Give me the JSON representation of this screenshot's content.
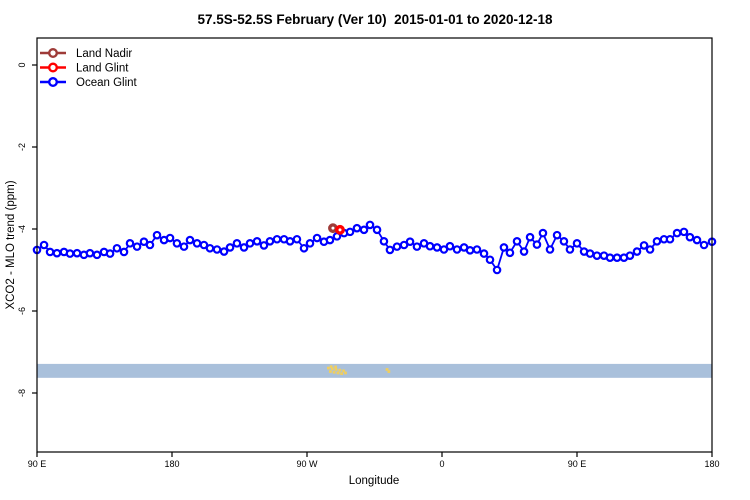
{
  "title": "57.5S-52.5S February (Ver 10)  2015-01-01 to 2020-12-18",
  "legend": {
    "items": [
      {
        "label": "Land Nadir",
        "color": "#9E3B38"
      },
      {
        "label": "Land Glint",
        "color": "#FF0000"
      },
      {
        "label": "Ocean Glint",
        "color": "#0000FF"
      }
    ]
  },
  "axes": {
    "x": {
      "label": "Longitude",
      "range_deg": [
        0,
        450
      ],
      "ticks": [
        {
          "deg": 0,
          "label": "90 E"
        },
        {
          "deg": 90,
          "label": "180"
        },
        {
          "deg": 180,
          "label": "90 W"
        },
        {
          "deg": 270,
          "label": "0"
        },
        {
          "deg": 360,
          "label": "90 E"
        },
        {
          "deg": 450,
          "label": "180"
        }
      ]
    },
    "y": {
      "label": "XCO2 - MLO trend (ppm)",
      "ticks": [
        0,
        -2,
        -4,
        -6,
        -8
      ],
      "range": [
        0.7,
        -9.5
      ]
    }
  },
  "chart_data": {
    "type": "line",
    "xlabel": "Longitude",
    "ylabel": "XCO2 - MLO trend (ppm)",
    "grid": false,
    "legend_position": "top-left",
    "series": [
      {
        "name": "Ocean Glint",
        "color": "#0000FF",
        "marker": "open-circle",
        "connected": true,
        "points": [
          [
            0,
            -4.51
          ],
          [
            4.7,
            -4.39
          ],
          [
            8.7,
            -4.56
          ],
          [
            13.3,
            -4.59
          ],
          [
            18,
            -4.56
          ],
          [
            22,
            -4.6
          ],
          [
            26.7,
            -4.59
          ],
          [
            31.3,
            -4.63
          ],
          [
            35.3,
            -4.59
          ],
          [
            40,
            -4.63
          ],
          [
            44.7,
            -4.56
          ],
          [
            48.7,
            -4.6
          ],
          [
            53.3,
            -4.47
          ],
          [
            58,
            -4.56
          ],
          [
            62,
            -4.35
          ],
          [
            66.7,
            -4.43
          ],
          [
            71.3,
            -4.31
          ],
          [
            75.3,
            -4.39
          ],
          [
            80,
            -4.15
          ],
          [
            84.7,
            -4.27
          ],
          [
            88.7,
            -4.22
          ],
          [
            93.3,
            -4.35
          ],
          [
            98,
            -4.43
          ],
          [
            102,
            -4.27
          ],
          [
            106.7,
            -4.35
          ],
          [
            111.3,
            -4.39
          ],
          [
            115.3,
            -4.47
          ],
          [
            120,
            -4.5
          ],
          [
            124.7,
            -4.55
          ],
          [
            128.7,
            -4.45
          ],
          [
            133.3,
            -4.35
          ],
          [
            138,
            -4.45
          ],
          [
            142,
            -4.35
          ],
          [
            146.7,
            -4.3
          ],
          [
            151.3,
            -4.4
          ],
          [
            155.3,
            -4.3
          ],
          [
            160,
            -4.25
          ],
          [
            164.7,
            -4.25
          ],
          [
            168.7,
            -4.3
          ],
          [
            173.3,
            -4.25
          ],
          [
            178,
            -4.47
          ],
          [
            182,
            -4.35
          ],
          [
            186.7,
            -4.22
          ],
          [
            191.3,
            -4.31
          ],
          [
            195.3,
            -4.27
          ],
          [
            200,
            -4.18
          ],
          [
            204.7,
            -4.1
          ],
          [
            208.7,
            -4.07
          ],
          [
            213.3,
            -3.98
          ],
          [
            218,
            -4.02
          ],
          [
            222,
            -3.9
          ],
          [
            226.7,
            -4.02
          ],
          [
            231.3,
            -4.3
          ],
          [
            235.3,
            -4.51
          ],
          [
            240,
            -4.43
          ],
          [
            244.7,
            -4.39
          ],
          [
            248.7,
            -4.31
          ],
          [
            253.3,
            -4.43
          ],
          [
            258,
            -4.35
          ],
          [
            262,
            -4.42
          ],
          [
            266.7,
            -4.45
          ],
          [
            271.3,
            -4.5
          ],
          [
            275.3,
            -4.42
          ],
          [
            280,
            -4.5
          ],
          [
            284.7,
            -4.45
          ],
          [
            288.7,
            -4.52
          ],
          [
            293.3,
            -4.5
          ],
          [
            298,
            -4.6
          ],
          [
            302,
            -4.75
          ],
          [
            306.7,
            -5.0
          ],
          [
            311.3,
            -4.45
          ],
          [
            315.3,
            -4.58
          ],
          [
            320,
            -4.3
          ],
          [
            324.7,
            -4.55
          ],
          [
            328.7,
            -4.2
          ],
          [
            333.3,
            -4.38
          ],
          [
            337.3,
            -4.1
          ],
          [
            342,
            -4.5
          ],
          [
            346.7,
            -4.15
          ],
          [
            351.3,
            -4.3
          ],
          [
            355.3,
            -4.5
          ],
          [
            360,
            -4.35
          ],
          [
            364.7,
            -4.55
          ],
          [
            368.7,
            -4.6
          ],
          [
            373.3,
            -4.65
          ],
          [
            378,
            -4.65
          ],
          [
            382,
            -4.7
          ],
          [
            386.7,
            -4.7
          ],
          [
            391.3,
            -4.7
          ],
          [
            395.3,
            -4.65
          ],
          [
            400,
            -4.55
          ],
          [
            404.7,
            -4.4
          ],
          [
            408.7,
            -4.5
          ],
          [
            413.3,
            -4.3
          ],
          [
            418,
            -4.25
          ],
          [
            422,
            -4.25
          ],
          [
            426.7,
            -4.1
          ],
          [
            431.3,
            -4.07
          ],
          [
            435.3,
            -4.2
          ],
          [
            440,
            -4.27
          ],
          [
            444.7,
            -4.39
          ],
          [
            450,
            -4.31
          ]
        ]
      },
      {
        "name": "Land Nadir",
        "color": "#9E3B38",
        "marker": "open-circle",
        "connected": false,
        "points": [
          [
            197.3,
            -3.98
          ]
        ]
      },
      {
        "name": "Land Glint",
        "color": "#FF0000",
        "marker": "open-circle",
        "connected": false,
        "points": [
          [
            202,
            -4.02
          ]
        ]
      }
    ],
    "map_band": {
      "ocean_color": "#A9C0DB",
      "land_color": "#EFCE60",
      "value_top": -7.29,
      "value_bottom": -7.63,
      "land_dots_deg": [
        [
          194.2,
          0.2
        ],
        [
          195.5,
          0.45
        ],
        [
          196.8,
          0.25
        ],
        [
          198,
          0.5
        ],
        [
          199.3,
          0.3
        ],
        [
          200.6,
          0.55
        ],
        [
          201.8,
          0.35
        ],
        [
          203,
          0.6
        ],
        [
          204.3,
          0.4
        ],
        [
          205.6,
          0.55
        ],
        [
          196,
          0.1
        ],
        [
          199,
          0.12
        ],
        [
          233.3,
          0.3
        ],
        [
          234.5,
          0.45
        ]
      ]
    }
  }
}
